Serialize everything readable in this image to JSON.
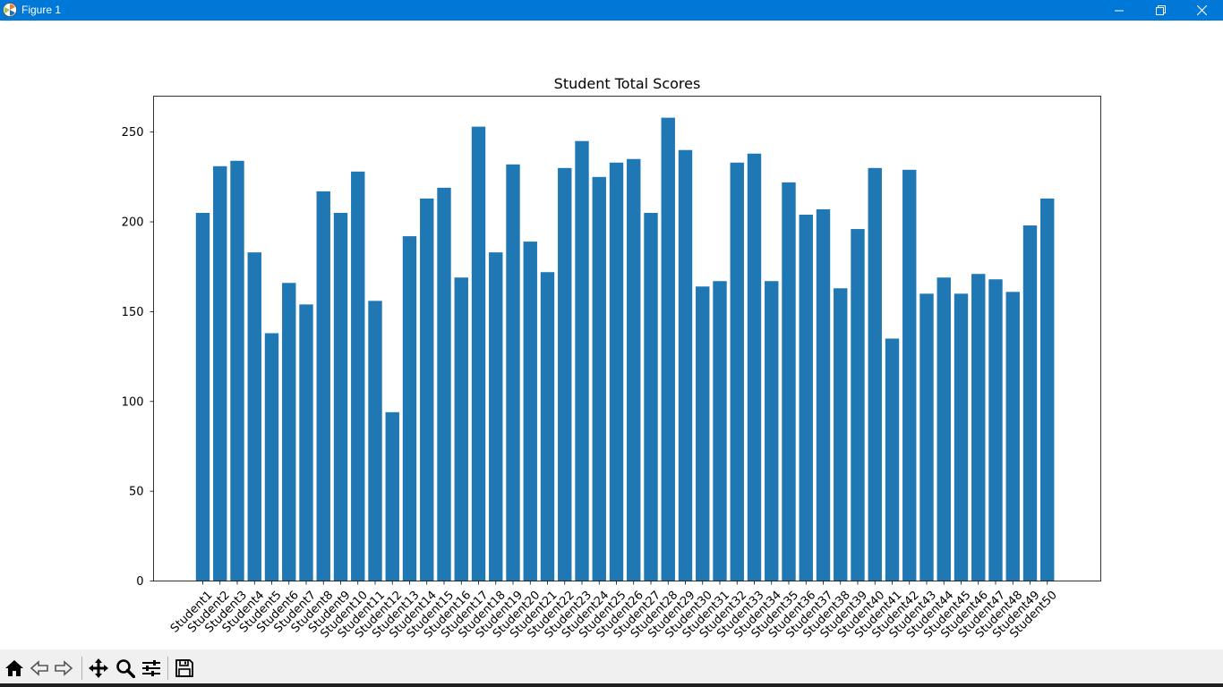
{
  "window": {
    "title": "Figure 1",
    "controls": {
      "minimize_icon": "minimize-icon",
      "restore_icon": "restore-icon",
      "close_icon": "close-icon"
    }
  },
  "toolbar": {
    "buttons": [
      {
        "name": "home",
        "icon": "home-icon"
      },
      {
        "name": "back",
        "icon": "back-arrow-icon"
      },
      {
        "name": "forward",
        "icon": "forward-arrow-icon"
      },
      {
        "name": "pan",
        "icon": "move-icon"
      },
      {
        "name": "zoom",
        "icon": "magnifier-icon"
      },
      {
        "name": "configure-subplots",
        "icon": "sliders-icon"
      },
      {
        "name": "save",
        "icon": "floppy-disk-icon"
      }
    ]
  },
  "chart_data": {
    "type": "bar",
    "title": "Student Total Scores",
    "xlabel": "",
    "ylabel": "",
    "ylim": [
      0,
      270
    ],
    "yticks": [
      0,
      50,
      100,
      150,
      200,
      250
    ],
    "grid": false,
    "bar_color": "#1f77b4",
    "categories": [
      "Student1",
      "Student2",
      "Student3",
      "Student4",
      "Student5",
      "Student6",
      "Student7",
      "Student8",
      "Student9",
      "Student10",
      "Student11",
      "Student12",
      "Student13",
      "Student14",
      "Student15",
      "Student16",
      "Student17",
      "Student18",
      "Student19",
      "Student20",
      "Student21",
      "Student22",
      "Student23",
      "Student24",
      "Student25",
      "Student26",
      "Student27",
      "Student28",
      "Student29",
      "Student30",
      "Student31",
      "Student32",
      "Student33",
      "Student34",
      "Student35",
      "Student36",
      "Student37",
      "Student38",
      "Student39",
      "Student40",
      "Student41",
      "Student42",
      "Student43",
      "Student44",
      "Student45",
      "Student46",
      "Student47",
      "Student48",
      "Student49",
      "Student50"
    ],
    "values": [
      205,
      231,
      234,
      183,
      138,
      166,
      154,
      217,
      205,
      228,
      156,
      94,
      192,
      213,
      219,
      169,
      253,
      183,
      232,
      189,
      172,
      230,
      245,
      225,
      233,
      235,
      205,
      258,
      240,
      164,
      167,
      233,
      238,
      167,
      222,
      204,
      207,
      163,
      196,
      230,
      135,
      229,
      160,
      169,
      160,
      171,
      168,
      161,
      198,
      213
    ]
  }
}
